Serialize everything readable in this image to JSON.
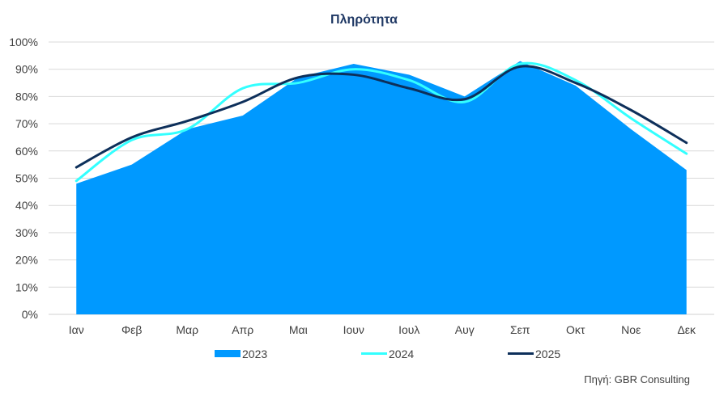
{
  "chart_data": {
    "type": "area",
    "title": "Πληρότητα",
    "categories": [
      "Ιαν",
      "Φεβ",
      "Μαρ",
      "Απρ",
      "Μαι",
      "Ιουν",
      "Ιουλ",
      "Αυγ",
      "Σεπ",
      "Οκτ",
      "Νοε",
      "Δεκ"
    ],
    "yticks": [
      "0%",
      "10%",
      "20%",
      "30%",
      "40%",
      "50%",
      "60%",
      "70%",
      "80%",
      "90%",
      "100%"
    ],
    "ylim": [
      0,
      100
    ],
    "grid": true,
    "legend_position": "bottom",
    "series": [
      {
        "name": "2023",
        "kind": "area",
        "color": "#0099ff",
        "values": [
          48,
          55,
          68,
          73,
          87,
          92,
          88,
          80,
          93,
          84,
          68,
          53
        ]
      },
      {
        "name": "2024",
        "kind": "smooth-line",
        "color": "#33ffff",
        "values": [
          49,
          64,
          68,
          83,
          85,
          90,
          86,
          78,
          92,
          86,
          72,
          59
        ]
      },
      {
        "name": "2025",
        "kind": "smooth-line",
        "color": "#0d2f5a",
        "values": [
          54,
          65,
          71,
          78,
          87,
          88,
          83,
          79,
          91,
          85,
          75,
          63
        ]
      }
    ]
  },
  "source": "Πηγή: GBR Consulting"
}
